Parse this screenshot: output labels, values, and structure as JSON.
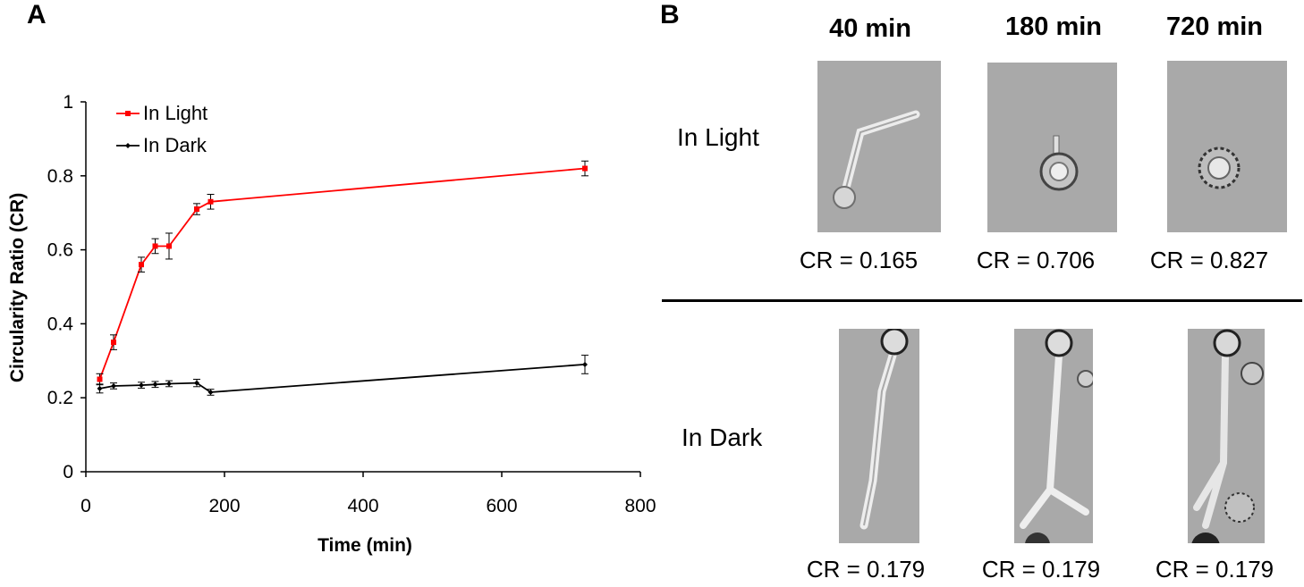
{
  "panel_a": {
    "letter": "A"
  },
  "panel_b": {
    "letter": "B",
    "columns": [
      "40 min",
      "180 min",
      "720 min"
    ],
    "rows": [
      {
        "label": "In Light",
        "cr": [
          "CR = 0.165",
          "CR = 0.706",
          "CR = 0.827"
        ]
      },
      {
        "label": "In Dark",
        "cr": [
          "CR = 0.179",
          "CR = 0.179",
          "CR = 0.179"
        ]
      }
    ]
  },
  "chart_data": {
    "type": "line",
    "xlabel": "Time (min)",
    "ylabel": "Circularity Ratio (CR)",
    "xlim": [
      0,
      800
    ],
    "ylim": [
      0,
      1
    ],
    "xticks": [
      0,
      200,
      400,
      600,
      800
    ],
    "yticks": [
      0,
      0.2,
      0.4,
      0.6,
      0.8,
      1
    ],
    "ytick_labels": [
      "0",
      "0.2",
      "0.4",
      "0.6",
      "0.8",
      "1"
    ],
    "grid": false,
    "legend_position": "top-left",
    "series": [
      {
        "name": "In Light",
        "color": "#ff0000",
        "marker": "square",
        "x": [
          20,
          40,
          80,
          100,
          120,
          160,
          180,
          720
        ],
        "y": [
          0.25,
          0.35,
          0.56,
          0.61,
          0.61,
          0.71,
          0.73,
          0.82
        ],
        "err": [
          0.015,
          0.02,
          0.02,
          0.02,
          0.035,
          0.015,
          0.02,
          0.02
        ]
      },
      {
        "name": "In Dark",
        "color": "#000000",
        "marker": "diamond",
        "x": [
          20,
          40,
          80,
          100,
          120,
          160,
          180,
          720
        ],
        "y": [
          0.225,
          0.232,
          0.234,
          0.236,
          0.238,
          0.24,
          0.215,
          0.29
        ],
        "err": [
          0.012,
          0.008,
          0.008,
          0.008,
          0.008,
          0.01,
          0.008,
          0.025
        ]
      }
    ]
  }
}
